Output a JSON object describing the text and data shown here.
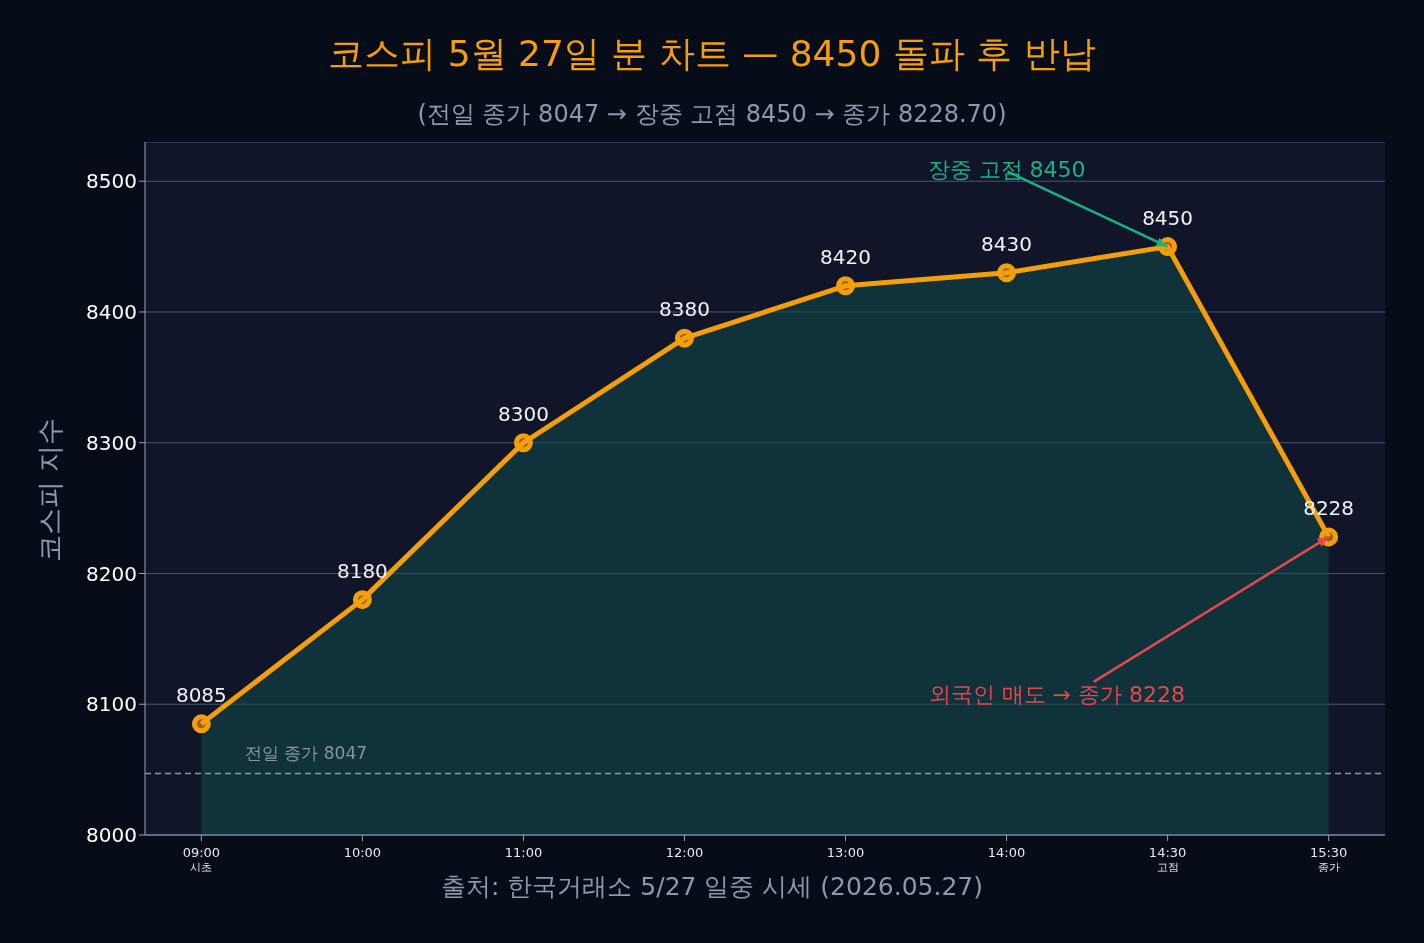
{
  "chart_data": {
    "type": "area",
    "title": "코스피 5월 27일 분 차트 — 8450 돌파 후 반납",
    "subtitle": "(전일 종가 8047 → 장중 고점 8450 → 종가 8228.70)",
    "ylabel": "코스피 지수",
    "categories": [
      "09:00\n시초",
      "10:00",
      "11:00",
      "12:00",
      "13:00",
      "14:00",
      "14:30\n고점",
      "15:30\n종가"
    ],
    "series": [
      {
        "color": "#f59e0b",
        "values": [
          8085,
          8180,
          8300,
          8380,
          8420,
          8430,
          8450,
          8228
        ]
      }
    ],
    "ylim": [
      8000,
      8530
    ],
    "yticks": [
      8000,
      8100,
      8200,
      8300,
      8400,
      8500
    ],
    "grid": "y",
    "marker": "circle",
    "line_style": "solid",
    "data_labels": true,
    "legend": false,
    "ref_lines": [
      {
        "axis": "y",
        "value": 8047,
        "label": "전일 종가 8047",
        "color": "#8a94a6",
        "line_style": "dashed"
      }
    ],
    "annotations": [
      {
        "text": "장중 고점 8450",
        "x": "14:30\n고점",
        "y": 8450
      },
      {
        "text": "외국인 매도 → 종가 8228",
        "x": "15:30\n종가",
        "y": 8228
      },
      "출처: 한국거래소 5/27 일중 시세 (2026.05.27)"
    ]
  }
}
